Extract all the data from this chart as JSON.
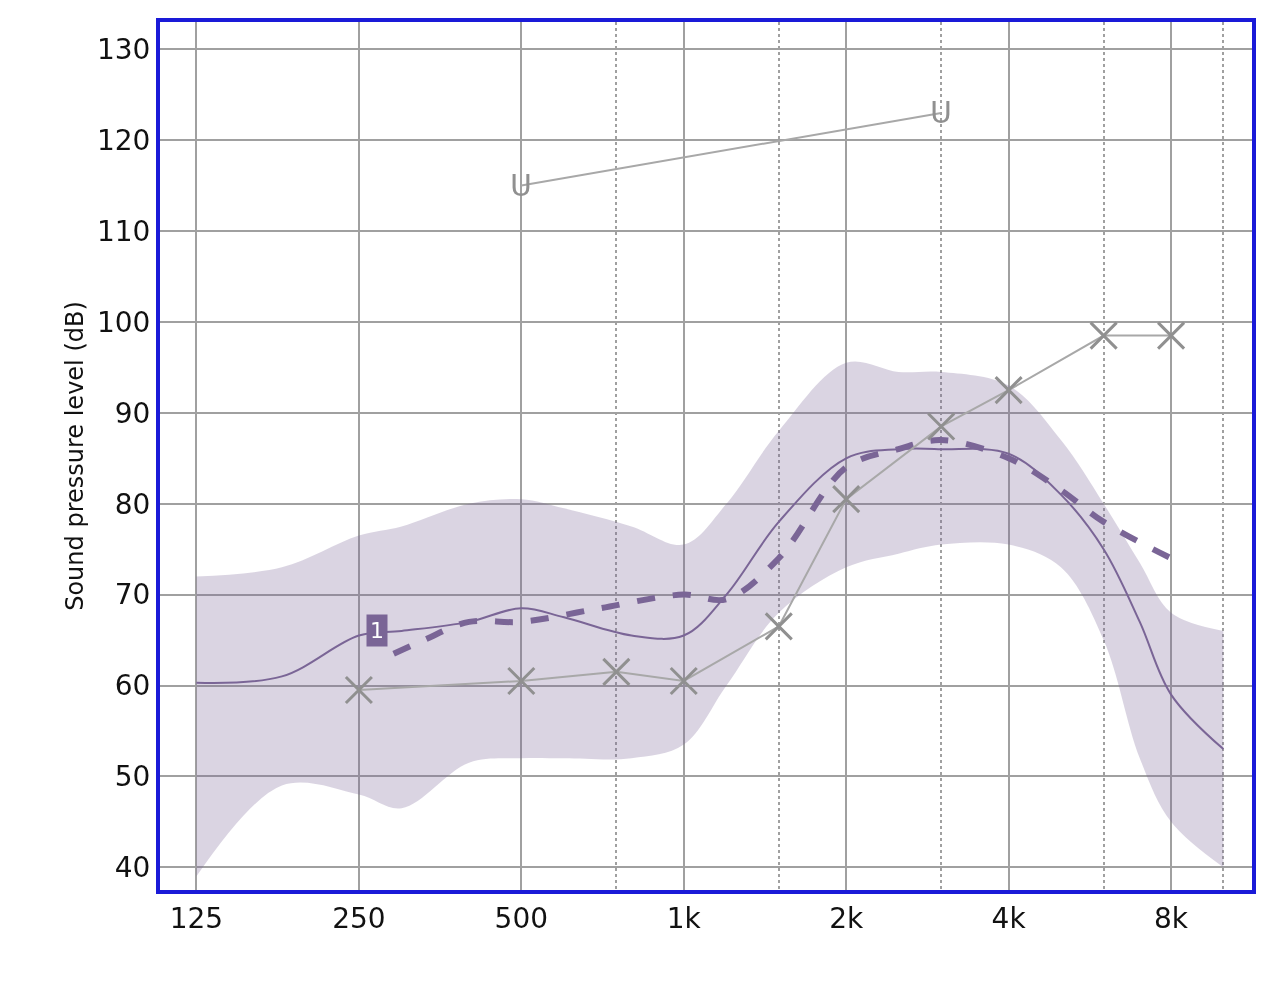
{
  "chart_data": {
    "type": "line",
    "ylabel": "Sound pressure level (dB)",
    "log": "x",
    "grid": true,
    "xlim": [
      107,
      11300
    ],
    "ylim": [
      37.5,
      133
    ],
    "xticks": [
      125,
      250,
      500,
      {
        "value": 750,
        "label": null
      },
      {
        "value": 1000,
        "label": "1k"
      },
      {
        "value": 1500,
        "label": null
      },
      {
        "value": 2000,
        "label": "2k"
      },
      {
        "value": 3000,
        "label": null
      },
      {
        "value": 4000,
        "label": "4k"
      },
      {
        "value": 6000,
        "label": null
      },
      {
        "value": 8000,
        "label": "8k"
      },
      {
        "value": 10000,
        "label": null
      }
    ],
    "yticks": [
      40,
      50,
      60,
      70,
      80,
      90,
      100,
      110,
      120,
      130
    ],
    "series": [
      {
        "color": "#7a6596",
        "line_style": "solid",
        "marker": "none",
        "x": [
          125,
          180,
          250,
          300,
          400,
          500,
          600,
          800,
          1000,
          1200,
          1500,
          2000,
          2500,
          3000,
          4000,
          5000,
          6000,
          7000,
          8000,
          10000
        ],
        "values": [
          60.3,
          61,
          65.5,
          66,
          67,
          68.5,
          67.5,
          65.5,
          65.5,
          70,
          78,
          85,
          86,
          86,
          85.5,
          81,
          75,
          67,
          59,
          53
        ],
        "lower": [
          39,
          49,
          48,
          46.5,
          51.5,
          52,
          52,
          52,
          53.5,
          60,
          68,
          73,
          74.5,
          75.5,
          75.5,
          73,
          65,
          52,
          45,
          40
        ],
        "upper": [
          72,
          73,
          76.5,
          77.5,
          80,
          80.5,
          79.5,
          77.5,
          75.5,
          80,
          88,
          95.5,
          94.5,
          94.5,
          93,
          87,
          80,
          73.5,
          68,
          66
        ]
      },
      {
        "color": "#7a6596",
        "line_style": "dashed",
        "marker": "none",
        "x": [
          290,
          330,
          400,
          500,
          700,
          1000,
          1200,
          1500,
          2000,
          2500,
          3000,
          4000,
          5000,
          6000,
          8000
        ],
        "values": [
          63.5,
          65,
          67,
          67,
          68.5,
          70,
          69.5,
          74,
          84,
          86,
          87,
          85,
          81.5,
          78,
          74
        ]
      },
      {
        "color": "#a8a8a8",
        "line_style": "solid",
        "marker": "cross",
        "x": [
          250,
          500,
          750,
          1000,
          1500,
          2000,
          3000,
          4000,
          6000,
          8000
        ],
        "values": [
          59.5,
          60.5,
          61.5,
          60.5,
          66.5,
          80.5,
          88.5,
          92.5,
          98.5,
          98.5
        ]
      },
      {
        "color": "#a8a8a8",
        "line_style": "solid",
        "marker": "none",
        "x": [
          500,
          3000
        ],
        "values": [
          115,
          123
        ]
      }
    ],
    "annotations": [
      {
        "text": "U",
        "x": 500,
        "y": 115
      },
      {
        "text": "U",
        "x": 3000,
        "y": 123
      },
      {
        "text": "1",
        "x": 270,
        "y": 66
      }
    ]
  }
}
